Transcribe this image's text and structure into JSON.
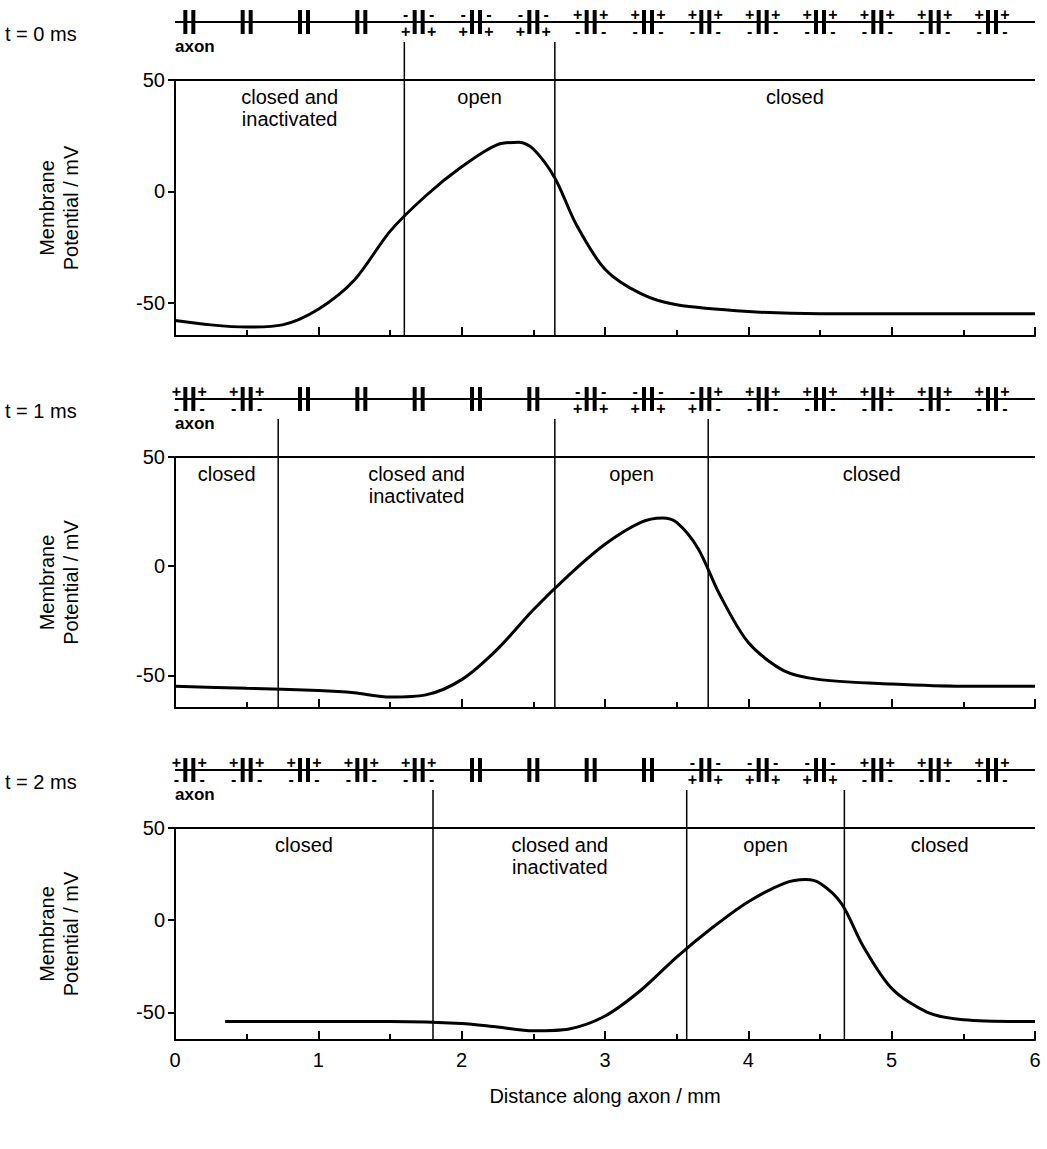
{
  "chart_data": [
    {
      "type": "line",
      "title": "t = 0 ms",
      "membrane_label": "axon",
      "ylabel": "Membrane Potential / mV",
      "x": [
        0,
        0.25,
        0.5,
        0.75,
        1,
        1.25,
        1.5,
        1.75,
        2,
        2.25,
        2.4,
        2.5,
        2.65,
        2.8,
        3,
        3.25,
        3.5,
        4,
        4.5,
        5,
        6
      ],
      "values": [
        -58,
        -60,
        -61,
        -60,
        -53,
        -40,
        -18,
        -2,
        11,
        21,
        22,
        19,
        6,
        -15,
        -35,
        -46,
        -51,
        -54,
        -55,
        -55,
        -55
      ],
      "color": "#000000",
      "xlim": [
        0,
        6
      ],
      "xticks": [
        0,
        1,
        2,
        3,
        4,
        5,
        6
      ],
      "ylim": [
        -65,
        50
      ],
      "yticks": [
        -50,
        0,
        50
      ],
      "tick_labels": "y",
      "regions": [
        {
          "from": 0,
          "to": 1.6,
          "label": "closed and inactivated"
        },
        {
          "from": 1.6,
          "to": 2.65,
          "label": "open"
        },
        {
          "from": 2.65,
          "to": 6,
          "label": "closed"
        }
      ],
      "channels": [
        0.1,
        0.5,
        0.9,
        1.3,
        1.7,
        2.1,
        2.5,
        2.9,
        3.3,
        3.7,
        4.1,
        4.5,
        4.9,
        5.3,
        5.7
      ],
      "charge_zones": [
        {
          "from": 1.6,
          "to": 2.65,
          "outside": "-",
          "inside": "+"
        },
        {
          "from": 2.65,
          "to": 6,
          "outside": "+",
          "inside": "-"
        }
      ]
    },
    {
      "type": "line",
      "title": "t = 1 ms",
      "membrane_label": "axon",
      "ylabel": "Membrane Potential / mV",
      "x": [
        0,
        0.5,
        1,
        1.25,
        1.5,
        1.75,
        2,
        2.25,
        2.5,
        2.75,
        3,
        3.25,
        3.4,
        3.5,
        3.65,
        3.8,
        4,
        4.25,
        4.5,
        5,
        5.5,
        6
      ],
      "values": [
        -55,
        -56,
        -57,
        -58,
        -60,
        -59,
        -52,
        -38,
        -20,
        -4,
        10,
        20,
        22,
        20,
        8,
        -13,
        -35,
        -48,
        -52,
        -54,
        -55,
        -55
      ],
      "color": "#000000",
      "xlim": [
        0,
        6
      ],
      "xticks": [
        0,
        1,
        2,
        3,
        4,
        5,
        6
      ],
      "ylim": [
        -65,
        50
      ],
      "yticks": [
        -50,
        0,
        50
      ],
      "tick_labels": "y",
      "regions": [
        {
          "from": 0,
          "to": 0.72,
          "label": "closed"
        },
        {
          "from": 0.72,
          "to": 2.65,
          "label": "closed and inactivated"
        },
        {
          "from": 2.65,
          "to": 3.72,
          "label": "open"
        },
        {
          "from": 3.72,
          "to": 6,
          "label": "closed"
        }
      ],
      "channels": [
        0.1,
        0.5,
        0.9,
        1.3,
        1.7,
        2.1,
        2.5,
        2.9,
        3.3,
        3.7,
        4.1,
        4.5,
        4.9,
        5.3,
        5.7
      ],
      "charge_zones": [
        {
          "from": 0,
          "to": 0.72,
          "outside": "+",
          "inside": "-"
        },
        {
          "from": 2.65,
          "to": 3.72,
          "outside": "-",
          "inside": "+"
        },
        {
          "from": 3.72,
          "to": 6,
          "outside": "+",
          "inside": "-"
        }
      ]
    },
    {
      "type": "line",
      "title": "t = 2 ms",
      "membrane_label": "axon",
      "ylabel": "Membrane Potential / mV",
      "xlabel": "Distance along axon / mm",
      "x": [
        0.35,
        1,
        1.5,
        2,
        2.25,
        2.5,
        2.75,
        3,
        3.25,
        3.5,
        3.75,
        4,
        4.25,
        4.4,
        4.5,
        4.65,
        4.8,
        5,
        5.25,
        5.5,
        6
      ],
      "values": [
        -55,
        -55,
        -55,
        -56,
        -58,
        -60,
        -59,
        -52,
        -38,
        -20,
        -4,
        10,
        20,
        22,
        20,
        9,
        -14,
        -37,
        -50,
        -54,
        -55
      ],
      "color": "#000000",
      "xlim": [
        0,
        6
      ],
      "xticks": [
        0,
        1,
        2,
        3,
        4,
        5,
        6
      ],
      "ylim": [
        -65,
        50
      ],
      "yticks": [
        -50,
        0,
        50
      ],
      "regions": [
        {
          "from": 0,
          "to": 1.8,
          "label": "closed"
        },
        {
          "from": 1.8,
          "to": 3.57,
          "label": "closed and inactivated"
        },
        {
          "from": 3.57,
          "to": 4.67,
          "label": "open"
        },
        {
          "from": 4.67,
          "to": 6,
          "label": "closed"
        }
      ],
      "channels": [
        0.1,
        0.5,
        0.9,
        1.3,
        1.7,
        2.1,
        2.5,
        2.9,
        3.3,
        3.7,
        4.1,
        4.5,
        4.9,
        5.3,
        5.7
      ],
      "charge_zones": [
        {
          "from": 0,
          "to": 1.8,
          "outside": "+",
          "inside": "-"
        },
        {
          "from": 3.57,
          "to": 4.67,
          "outside": "-",
          "inside": "+"
        },
        {
          "from": 4.67,
          "to": 6,
          "outside": "+",
          "inside": "-"
        }
      ]
    }
  ]
}
